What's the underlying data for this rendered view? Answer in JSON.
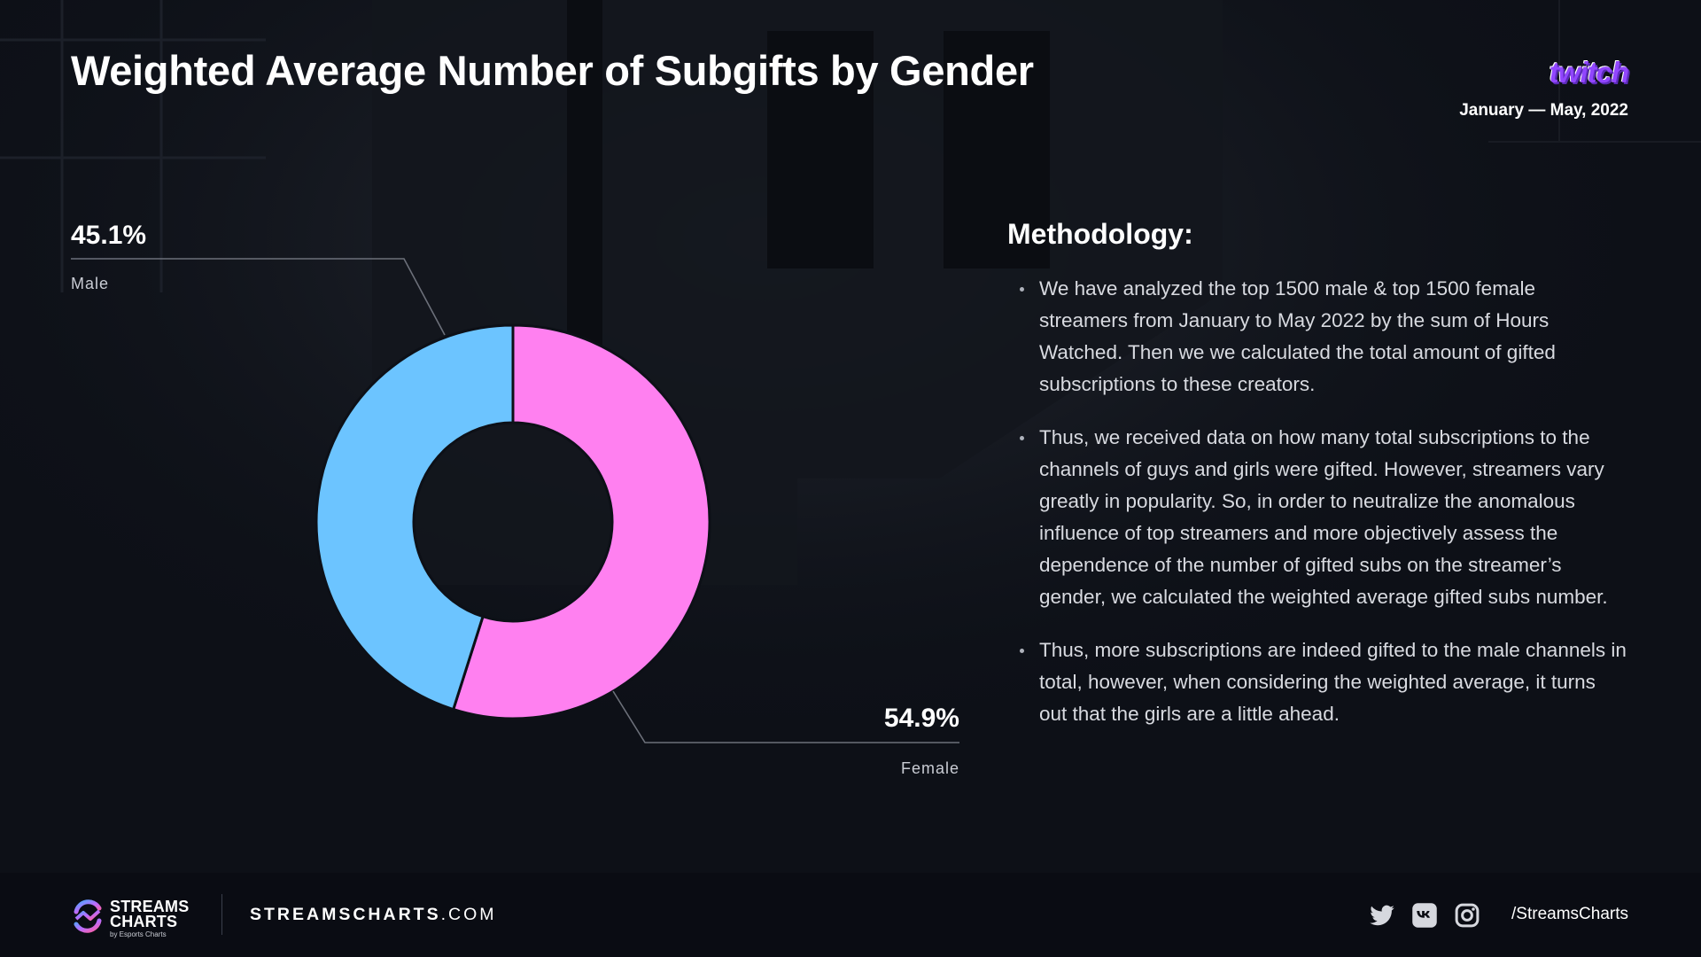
{
  "title": "Weighted Average Number of Subgifts by Gender",
  "brand": "twitch",
  "date_range": "January — May, 2022",
  "colors": {
    "male": "#6cc4ff",
    "female": "#ff80f0",
    "background": "#0d1017",
    "brand": "#9146ff"
  },
  "chart_data": {
    "type": "pie",
    "donut": true,
    "labels": [
      "Male",
      "Female"
    ],
    "values": [
      45.1,
      54.9
    ],
    "value_labels": [
      "45.1%",
      "54.9%"
    ],
    "unit": "%"
  },
  "methodology": {
    "heading": "Methodology:",
    "items": [
      "We have analyzed the top 1500 male & top 1500 female streamers from January to May 2022 by the sum of Hours Watched. Then we we calculated the total amount of gifted subscriptions to these creators.",
      "Thus, we received data on how many total subscriptions to the channels of guys and girls were gifted. However, streamers vary greatly in popularity. So, in order to neutralize the anomalous influence of top streamers and more objectively assess the dependence of the number of gifted subs on the streamer’s gender, we calculated the weighted average gifted subs number.",
      "Thus, more subscriptions are indeed gifted to the male channels in total, however, when considering the weighted average, it turns out that the girls are a little ahead."
    ]
  },
  "footer": {
    "logo_line1": "STREAMS",
    "logo_line2": "CHARTS",
    "logo_sub": "by Esports Charts",
    "site_main": "STREAMSCHARTS",
    "site_tld": ".COM",
    "social_icons": [
      "twitter-icon",
      "vk-icon",
      "instagram-icon"
    ],
    "handle": "/StreamsCharts"
  }
}
